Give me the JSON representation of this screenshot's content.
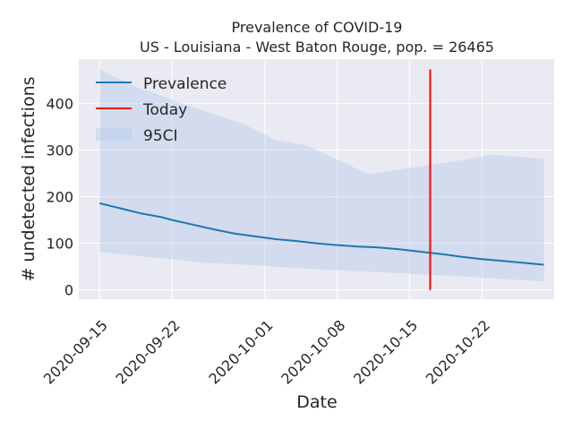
{
  "chart_data": {
    "type": "line",
    "title": "Prevalence of COVID-19",
    "subtitle": "US - Louisiana - West Baton Rouge, pop. = 26465",
    "xlabel": "Date",
    "ylabel": "# undetected infections",
    "x_ticks": [
      "2020-09-15",
      "2020-09-22",
      "2020-10-01",
      "2020-10-08",
      "2020-10-15",
      "2020-10-22"
    ],
    "y_ticks": [
      0,
      100,
      200,
      300,
      400
    ],
    "xlim": [
      "2020-09-13",
      "2020-10-29"
    ],
    "ylim": [
      -20,
      495
    ],
    "grid": true,
    "legend_position": "top-left",
    "colors": {
      "prevalence": "#1f77b4",
      "today": "#ff0000",
      "ci": "#aec7e8",
      "background": "#eaeaf2",
      "grid": "#ffffff"
    },
    "series": [
      {
        "name": "Prevalence",
        "x": [
          "2020-09-15",
          "2020-09-17",
          "2020-09-19",
          "2020-09-21",
          "2020-09-22",
          "2020-09-24",
          "2020-09-26",
          "2020-09-28",
          "2020-09-30",
          "2020-10-02",
          "2020-10-04",
          "2020-10-06",
          "2020-10-08",
          "2020-10-10",
          "2020-10-12",
          "2020-10-14",
          "2020-10-16",
          "2020-10-18",
          "2020-10-20",
          "2020-10-22",
          "2020-10-24",
          "2020-10-26",
          "2020-10-28"
        ],
        "values": [
          186,
          175,
          164,
          156,
          150,
          140,
          130,
          121,
          115,
          109,
          105,
          100,
          96,
          93,
          91,
          87,
          82,
          77,
          71,
          66,
          62,
          58,
          54
        ]
      },
      {
        "name": "Today",
        "x": [
          "2020-10-17",
          "2020-10-17"
        ],
        "values": [
          0,
          473
        ]
      },
      {
        "name": "95CI",
        "x": [
          "2020-09-15",
          "2020-09-18",
          "2020-09-22",
          "2020-09-25",
          "2020-09-29",
          "2020-10-02",
          "2020-10-05",
          "2020-10-08",
          "2020-10-11",
          "2020-10-14",
          "2020-10-17",
          "2020-10-20",
          "2020-10-23",
          "2020-10-26",
          "2020-10-28"
        ],
        "upper": [
          473,
          440,
          408,
          385,
          355,
          322,
          310,
          280,
          248,
          258,
          268,
          278,
          290,
          285,
          280
        ],
        "lower": [
          82,
          74,
          66,
          58,
          54,
          50,
          46,
          42,
          39,
          36,
          32,
          29,
          25,
          21,
          18
        ]
      }
    ]
  }
}
